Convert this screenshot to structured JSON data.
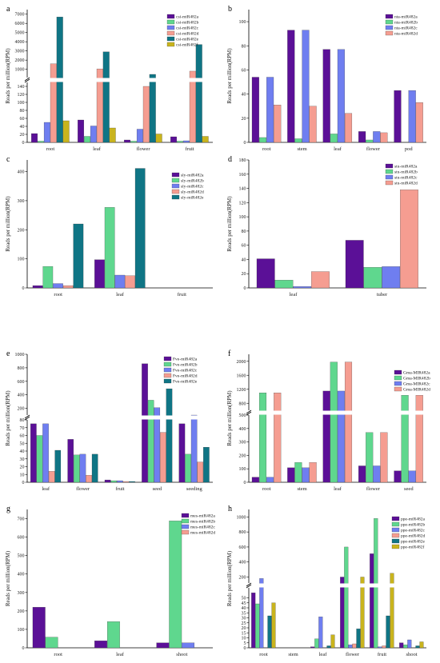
{
  "colors": {
    "s1": "#5b1097",
    "s2": "#5fd78e",
    "s3": "#6f7ef0",
    "s4": "#f59d91",
    "s5": "#0f7585",
    "s6": "#c9b41d"
  },
  "chart_data": [
    {
      "panel": "a",
      "type": "bar",
      "ylabel": "Reads per million(RPM)",
      "categories": [
        "root",
        "leaf",
        "flower",
        "fruit"
      ],
      "series": [
        {
          "name": "csi-miR482a",
          "color_key": "s1",
          "values": [
            22,
            56,
            6,
            14
          ]
        },
        {
          "name": "csi-miR482b",
          "color_key": "s2",
          "values": [
            3,
            15,
            3,
            3
          ]
        },
        {
          "name": "csi-miR482c",
          "color_key": "s3",
          "values": [
            50,
            41,
            33,
            4
          ]
        },
        {
          "name": "csi-miR482d",
          "color_key": "s4",
          "values": [
            1600,
            1050,
            140,
            800
          ]
        },
        {
          "name": "csi-miR482e",
          "color_key": "s5",
          "values": [
            6700,
            2900,
            450,
            3700
          ]
        },
        {
          "name": "csi-miR482f",
          "color_key": "s6",
          "values": [
            54,
            36,
            21,
            15
          ]
        }
      ],
      "axis_break": {
        "lower": [
          0,
          150
        ],
        "upper": [
          100,
          7500
        ]
      },
      "yticks_lower": [
        0,
        20,
        40,
        60,
        80,
        100,
        120,
        140
      ],
      "yticks_upper": [
        1000,
        2000,
        3000,
        4000,
        5000,
        6000,
        7000
      ]
    },
    {
      "panel": "b",
      "type": "bar",
      "ylabel": "Reads per million(RPM)",
      "categories": [
        "root",
        "stem",
        "leaf",
        "flower",
        "pod"
      ],
      "series": [
        {
          "name": "nta-miR482a",
          "color_key": "s1",
          "values": [
            54,
            93,
            77,
            9,
            43
          ]
        },
        {
          "name": "nta-miR482b",
          "color_key": "s2",
          "values": [
            4,
            3,
            7,
            2,
            0
          ]
        },
        {
          "name": "nta-miR482c",
          "color_key": "s3",
          "values": [
            54,
            93,
            77,
            9,
            43
          ]
        },
        {
          "name": "nta-miR482d",
          "color_key": "s4",
          "values": [
            31,
            30,
            24,
            8,
            33
          ]
        }
      ],
      "ylim": [
        0,
        110
      ],
      "yticks": [
        0,
        20,
        40,
        60,
        80,
        100
      ]
    },
    {
      "panel": "c",
      "type": "bar",
      "ylabel": "Reads per million(RPM)",
      "categories": [
        "root",
        "leaf",
        "fruit"
      ],
      "series": [
        {
          "name": "sly-miR482a",
          "color_key": "s1",
          "values": [
            8,
            97,
            0
          ]
        },
        {
          "name": "sly-miR482b",
          "color_key": "s2",
          "values": [
            74,
            277,
            0
          ]
        },
        {
          "name": "sly-miR482c",
          "color_key": "s3",
          "values": [
            15,
            44,
            0
          ]
        },
        {
          "name": "sly-miR482d",
          "color_key": "s4",
          "values": [
            8,
            42,
            0
          ]
        },
        {
          "name": "sly-miR482e",
          "color_key": "s5",
          "values": [
            220,
            411,
            0
          ]
        }
      ],
      "ylim": [
        0,
        440
      ],
      "yticks": [
        0,
        100,
        200,
        300,
        400
      ]
    },
    {
      "panel": "d",
      "type": "bar",
      "ylabel": "Reads per million(RPM)",
      "categories": [
        "leaf",
        "tuber"
      ],
      "series": [
        {
          "name": "stu-miR482a",
          "color_key": "s1",
          "values": [
            41,
            67
          ]
        },
        {
          "name": "stu-miR482b",
          "color_key": "s2",
          "values": [
            11,
            29
          ]
        },
        {
          "name": "stu-miR482c",
          "color_key": "s3",
          "values": [
            2,
            30
          ]
        },
        {
          "name": "stu-miR482d",
          "color_key": "s4",
          "values": [
            23,
            138
          ]
        }
      ],
      "ylim": [
        0,
        180
      ],
      "yticks": [
        0,
        20,
        40,
        60,
        80,
        100,
        120,
        140,
        160,
        180
      ]
    },
    {
      "panel": "e",
      "type": "bar",
      "ylabel": "Reads per million(RPM)",
      "categories": [
        "leaf",
        "flower",
        "fruit",
        "seed",
        "seeding"
      ],
      "series": [
        {
          "name": "Fve-miR482a",
          "color_key": "s1",
          "values": [
            75,
            55,
            3,
            860,
            75
          ]
        },
        {
          "name": "Fve-miR482b",
          "color_key": "s2",
          "values": [
            60,
            35,
            2,
            320,
            36
          ]
        },
        {
          "name": "Fve-miR482c",
          "color_key": "s3",
          "values": [
            75,
            36,
            2,
            210,
            100
          ]
        },
        {
          "name": "Fve-miR482d",
          "color_key": "s4",
          "values": [
            14,
            9,
            1,
            64,
            26
          ]
        },
        {
          "name": "Fve-miR482e",
          "color_key": "s5",
          "values": [
            41,
            36,
            1,
            490,
            45
          ]
        }
      ],
      "axis_break": {
        "lower": [
          0,
          80
        ],
        "upper": [
          100,
          1000
        ]
      },
      "yticks_lower": [
        0,
        10,
        20,
        30,
        40,
        50,
        60,
        70,
        80
      ],
      "yticks_upper": [
        200,
        400,
        600,
        800,
        1000
      ]
    },
    {
      "panel": "f",
      "type": "bar",
      "ylabel": "Reads per million(RPM)",
      "categories": [
        "root",
        "stem",
        "leaf",
        "flower",
        "seed"
      ],
      "series": [
        {
          "name": "Gma-MIR482a",
          "color_key": "s1",
          "values": [
            38,
            108,
            1150,
            122,
            85
          ]
        },
        {
          "name": "Gma-MIR482b",
          "color_key": "s2",
          "values": [
            1100,
            147,
            1980,
            370,
            1030
          ]
        },
        {
          "name": "Gma-MIR482c",
          "color_key": "s3",
          "values": [
            38,
            108,
            1150,
            122,
            85
          ]
        },
        {
          "name": "Gma-MIR482d",
          "color_key": "s4",
          "values": [
            1100,
            147,
            1980,
            370,
            1030
          ]
        }
      ],
      "axis_break": {
        "lower": [
          0,
          500
        ],
        "upper": [
          600,
          2200
        ]
      },
      "yticks_lower": [
        0,
        100,
        200,
        300,
        400,
        500
      ],
      "yticks_upper": [
        800,
        1200,
        1600,
        2000
      ]
    },
    {
      "panel": "g",
      "type": "bar",
      "ylabel": "Reads per million(RPM)",
      "categories": [
        "root",
        "leaf",
        "shoot"
      ],
      "series": [
        {
          "name": "mes-miR482a",
          "color_key": "s1",
          "values": [
            220,
            38,
            27
          ]
        },
        {
          "name": "mes-miR482b",
          "color_key": "s2",
          "values": [
            58,
            142,
            688
          ]
        },
        {
          "name": "mes-miR482c",
          "color_key": "s3",
          "values": [
            0,
            0,
            27
          ]
        },
        {
          "name": "mes-miR482d",
          "color_key": "s4",
          "values": [
            0,
            0,
            0
          ]
        }
      ],
      "ylim": [
        0,
        750
      ],
      "yticks": [
        0,
        100,
        200,
        300,
        400,
        500,
        600,
        700
      ]
    },
    {
      "panel": "h",
      "type": "bar",
      "ylabel": "Reads per million(RPM)",
      "categories": [
        "root",
        "stem",
        "leaf",
        "flower",
        "fruit",
        "shoot"
      ],
      "series": [
        {
          "name": "ppe-miR482a",
          "color_key": "s1",
          "values": [
            55,
            0,
            1,
            200,
            510,
            5
          ]
        },
        {
          "name": "ppe-miR482b",
          "color_key": "s2",
          "values": [
            44,
            0,
            9,
            600,
            980,
            3
          ]
        },
        {
          "name": "ppe-miR482c",
          "color_key": "s3",
          "values": [
            180,
            0,
            31,
            3,
            1,
            8
          ]
        },
        {
          "name": "ppe-miR482d",
          "color_key": "s4",
          "values": [
            0,
            0,
            0,
            4,
            2,
            0
          ]
        },
        {
          "name": "ppe-miR482e",
          "color_key": "s5",
          "values": [
            32,
            0,
            2,
            19,
            32,
            2
          ]
        },
        {
          "name": "ppe-miR482f",
          "color_key": "s6",
          "values": [
            45,
            0,
            13,
            200,
            250,
            6
          ]
        }
      ],
      "axis_break": {
        "lower": [
          0,
          60
        ],
        "upper": [
          120,
          1100
        ]
      },
      "yticks_lower": [
        0,
        5,
        10,
        15,
        20,
        25,
        30,
        35,
        40,
        45,
        50
      ],
      "yticks_upper": [
        200,
        400,
        600,
        800,
        1000
      ]
    }
  ]
}
